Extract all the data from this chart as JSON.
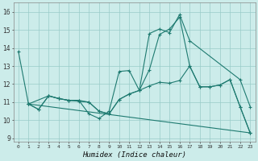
{
  "xlabel": "Humidex (Indice chaleur)",
  "background_color": "#ccecea",
  "grid_color": "#99ccc8",
  "line_color": "#1e7a70",
  "xlim": [
    -0.5,
    23.5
  ],
  "ylim": [
    8.8,
    16.5
  ],
  "yticks": [
    9,
    10,
    11,
    12,
    13,
    14,
    15,
    16
  ],
  "xticks": [
    0,
    1,
    2,
    3,
    4,
    5,
    6,
    7,
    8,
    9,
    10,
    11,
    12,
    13,
    14,
    15,
    16,
    17,
    18,
    19,
    20,
    21,
    22,
    23
  ],
  "series": [
    {
      "x": [
        0,
        1,
        2,
        3,
        4,
        5,
        6,
        7,
        8,
        9,
        10,
        11,
        12,
        13,
        14,
        15,
        16,
        17,
        22,
        23
      ],
      "y": [
        13.8,
        10.9,
        10.6,
        11.35,
        11.2,
        11.1,
        11.1,
        10.35,
        10.1,
        10.5,
        12.7,
        12.75,
        11.65,
        14.8,
        15.05,
        14.85,
        15.85,
        14.4,
        12.25,
        10.75
      ]
    },
    {
      "x": [
        1,
        2,
        3,
        4,
        5,
        6,
        7,
        8,
        9,
        10,
        11,
        12,
        13,
        14,
        15,
        16,
        17,
        18,
        19,
        20,
        21,
        22,
        23
      ],
      "y": [
        10.9,
        10.6,
        11.35,
        11.2,
        11.1,
        11.1,
        11.0,
        10.5,
        10.35,
        11.15,
        11.45,
        11.65,
        12.8,
        14.75,
        15.05,
        15.7,
        13.0,
        11.85,
        11.85,
        11.95,
        12.25,
        10.75,
        9.3
      ]
    },
    {
      "x": [
        1,
        3,
        4,
        5,
        6,
        7,
        8,
        9,
        10,
        11,
        12,
        13,
        14,
        15,
        16,
        17,
        18,
        19,
        20,
        21,
        22,
        23
      ],
      "y": [
        10.9,
        11.35,
        11.2,
        11.1,
        11.05,
        11.0,
        10.5,
        10.35,
        11.15,
        11.45,
        11.65,
        11.9,
        12.1,
        12.05,
        12.2,
        13.0,
        11.85,
        11.85,
        11.95,
        12.25,
        10.75,
        9.3
      ]
    },
    {
      "x": [
        1,
        23
      ],
      "y": [
        10.9,
        9.3
      ]
    }
  ]
}
